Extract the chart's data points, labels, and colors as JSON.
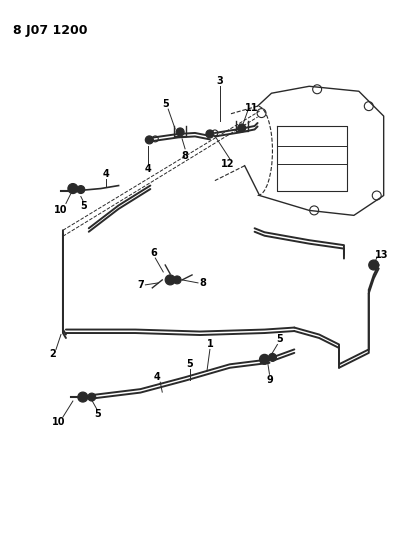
{
  "title": "8 J07 1200",
  "background_color": "#ffffff",
  "line_color": "#2a2a2a",
  "text_color": "#000000",
  "fig_width": 3.94,
  "fig_height": 5.33,
  "dpi": 100
}
